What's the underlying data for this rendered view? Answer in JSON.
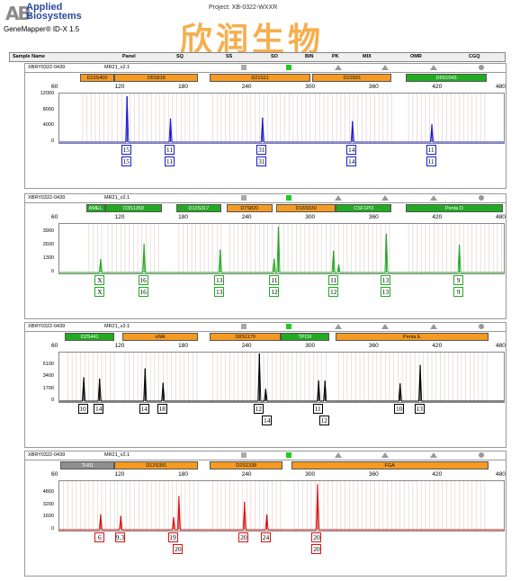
{
  "header": {
    "logo_mark": "AB",
    "logo_line1": "Applied",
    "logo_line2": "Biosystems",
    "app_version": "GeneMapper® ID-X 1.5",
    "project": "Project: XB-0322-WXXR",
    "watermark": "欣润生物"
  },
  "columns": [
    "Sample Name",
    "Panel",
    "SQ",
    "SS",
    "SO",
    "BIN",
    "PK",
    "MIX",
    "OMR",
    "CGQ"
  ],
  "x_ticks": [
    "60",
    "120",
    "180",
    "240",
    "300",
    "360",
    "420",
    "480"
  ],
  "colors": {
    "blue": "#1a1ad8",
    "green": "#22aa22",
    "black": "#000000",
    "red": "#dd1111",
    "orange": "#f59a22",
    "locus_green": "#22aa22",
    "gray": "#8e8e8e"
  },
  "panels": [
    {
      "sample": "XBRY0322-0439",
      "kit": "MR21_v2.1",
      "color": "#1a1ad8",
      "y_ticks": [
        "12000",
        "8000",
        "4000",
        "0"
      ],
      "y_values": [
        12000,
        8000,
        4000,
        0
      ],
      "y_max": 12500,
      "loci": [
        {
          "name": "D19S400",
          "start": 80,
          "end": 113,
          "c": "lo"
        },
        {
          "name": "D5S818",
          "start": 113,
          "end": 192,
          "c": "lo"
        },
        {
          "name": "D21S11",
          "start": 203,
          "end": 298,
          "c": "lo"
        },
        {
          "name": "D10S51",
          "start": 300,
          "end": 375,
          "c": "lo"
        },
        {
          "name": "D6S1043",
          "start": 388,
          "end": 465,
          "c": "lg"
        }
      ],
      "peaks": [
        {
          "x": 124,
          "h": 12000
        },
        {
          "x": 165,
          "h": 6200
        },
        {
          "x": 252,
          "h": 6400
        },
        {
          "x": 337,
          "h": 5500
        },
        {
          "x": 412,
          "h": 4700
        }
      ],
      "alleles": [
        {
          "x": 124,
          "row1": "15",
          "row2": "15"
        },
        {
          "x": 165,
          "row1": "11",
          "row2": "11"
        },
        {
          "x": 252,
          "row1": "31",
          "row2": "31"
        },
        {
          "x": 337,
          "row1": "14",
          "row2": "14"
        },
        {
          "x": 412,
          "row1": "11",
          "row2": "11"
        }
      ]
    },
    {
      "sample": "XBRY0322-0439",
      "kit": "MR21_v2.1",
      "color": "#22aa22",
      "y_ticks": [
        "3900",
        "2600",
        "1300",
        "0"
      ],
      "y_values": [
        3900,
        2600,
        1300,
        0
      ],
      "y_max": 4800,
      "loci": [
        {
          "name": "AMEL",
          "start": 86,
          "end": 104,
          "c": "lg"
        },
        {
          "name": "D3S1358",
          "start": 104,
          "end": 158,
          "c": "lg"
        },
        {
          "name": "D13S317",
          "start": 171,
          "end": 214,
          "c": "lg"
        },
        {
          "name": "D7S820",
          "start": 219,
          "end": 262,
          "c": "lo"
        },
        {
          "name": "D16S539",
          "start": 266,
          "end": 322,
          "c": "lo"
        },
        {
          "name": "CSF1PO",
          "start": 322,
          "end": 375,
          "c": "lg"
        },
        {
          "name": "Penta D",
          "start": 388,
          "end": 480,
          "c": "lg"
        }
      ],
      "peaks": [
        {
          "x": 99,
          "h": 1350
        },
        {
          "x": 140,
          "h": 2900
        },
        {
          "x": 212,
          "h": 2300
        },
        {
          "x": 263,
          "h": 1400
        },
        {
          "x": 267,
          "h": 4600
        },
        {
          "x": 319,
          "h": 2200
        },
        {
          "x": 324,
          "h": 800
        },
        {
          "x": 369,
          "h": 3900
        },
        {
          "x": 438,
          "h": 2800
        }
      ],
      "alleles": [
        {
          "x": 99,
          "row1": "X",
          "row2": "X"
        },
        {
          "x": 140,
          "row1": "16",
          "row2": "16"
        },
        {
          "x": 212,
          "row1": "13",
          "row2": "13"
        },
        {
          "x": 264,
          "row1": "11",
          "row2": "12"
        },
        {
          "x": 320,
          "row1": "11",
          "row2": "12"
        },
        {
          "x": 369,
          "row1": "13",
          "row2": "13"
        },
        {
          "x": 438,
          "row1": "9",
          "row2": "9"
        }
      ]
    },
    {
      "sample": "XBRY0322-0439",
      "kit": "MR21_v2.1",
      "color": "#000000",
      "y_ticks": [
        "5100",
        "3400",
        "1700",
        "0"
      ],
      "y_values": [
        5100,
        3400,
        1700,
        0
      ],
      "y_max": 7000,
      "loci": [
        {
          "name": "D2S441",
          "start": 66,
          "end": 113,
          "c": "lg"
        },
        {
          "name": "vWA",
          "start": 120,
          "end": 192,
          "c": "lo"
        },
        {
          "name": "D8S1179",
          "start": 203,
          "end": 270,
          "c": "lo"
        },
        {
          "name": "TPOX",
          "start": 270,
          "end": 316,
          "c": "lg"
        },
        {
          "name": "Penta E",
          "start": 322,
          "end": 466,
          "c": "lo"
        }
      ],
      "peaks": [
        {
          "x": 83,
          "h": 3500
        },
        {
          "x": 98,
          "h": 3300
        },
        {
          "x": 141,
          "h": 4800
        },
        {
          "x": 158,
          "h": 2700
        },
        {
          "x": 249,
          "h": 7000
        },
        {
          "x": 255,
          "h": 1800
        },
        {
          "x": 305,
          "h": 3000
        },
        {
          "x": 311,
          "h": 3000
        },
        {
          "x": 382,
          "h": 2600
        },
        {
          "x": 401,
          "h": 5300
        }
      ],
      "alleles": [
        {
          "x": 83,
          "row1": "10"
        },
        {
          "x": 98,
          "row1": "14"
        },
        {
          "x": 141,
          "row1": "14"
        },
        {
          "x": 158,
          "row1": "18"
        },
        {
          "x": 249,
          "row1": "12",
          "row2": "14",
          "row2_x": 257
        },
        {
          "x": 305,
          "row1": "11",
          "row2": "12",
          "row2_x": 311
        },
        {
          "x": 382,
          "row1": "10"
        },
        {
          "x": 401,
          "row1": "13"
        }
      ]
    },
    {
      "sample": "XBRY0322-0439",
      "kit": "MR21_v2.1",
      "color": "#dd1111",
      "y_ticks": [
        "4800",
        "3200",
        "1600",
        "0"
      ],
      "y_values": [
        4800,
        3200,
        1600,
        0
      ],
      "y_max": 6500,
      "loci": [
        {
          "name": "TH01",
          "start": 62,
          "end": 113,
          "c": "lgr"
        },
        {
          "name": "D12S391",
          "start": 113,
          "end": 192,
          "c": "lo"
        },
        {
          "name": "D2S1338",
          "start": 203,
          "end": 272,
          "c": "lo"
        },
        {
          "name": "FGA",
          "start": 280,
          "end": 466,
          "c": "lo"
        }
      ],
      "peaks": [
        {
          "x": 99,
          "h": 2100
        },
        {
          "x": 118,
          "h": 1900
        },
        {
          "x": 168,
          "h": 1700
        },
        {
          "x": 173,
          "h": 4600
        },
        {
          "x": 235,
          "h": 3800
        },
        {
          "x": 256,
          "h": 2100
        },
        {
          "x": 304,
          "h": 6200
        }
      ],
      "alleles": [
        {
          "x": 99,
          "row1": "6"
        },
        {
          "x": 118,
          "row1": "9.3"
        },
        {
          "x": 168,
          "row1": "19",
          "row2": "20",
          "row2_x": 173
        },
        {
          "x": 235,
          "row1": "20"
        },
        {
          "x": 256,
          "row1": "24"
        },
        {
          "x": 304,
          "row1": "20",
          "row2": "20"
        }
      ]
    }
  ]
}
